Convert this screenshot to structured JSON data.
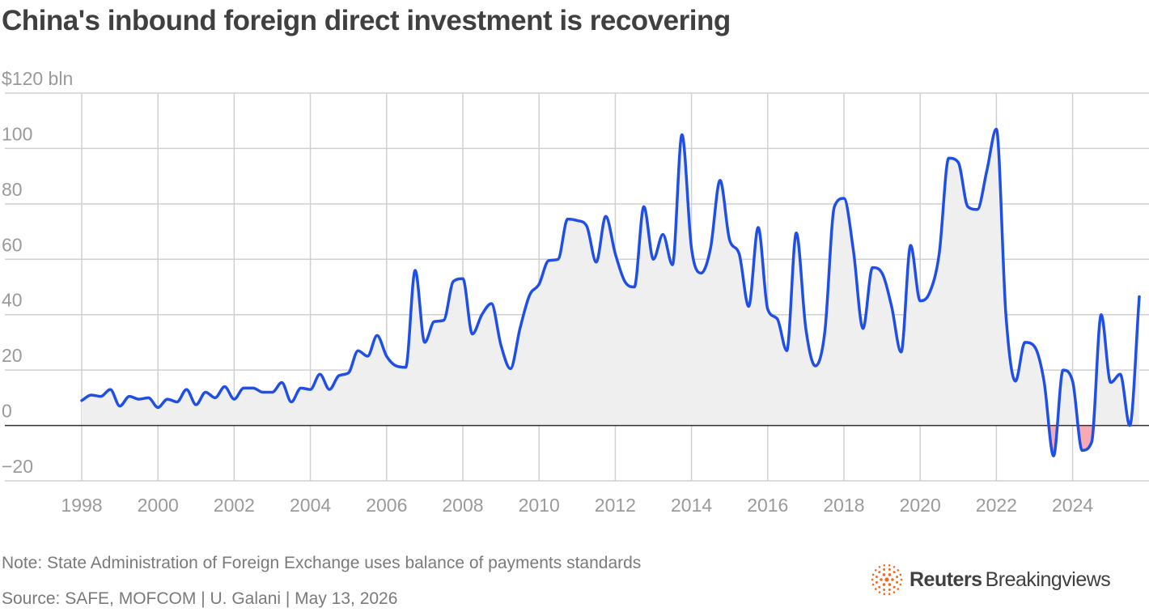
{
  "title": "China's inbound foreign direct investment is recovering",
  "note": "Note: State Administration of Foreign Exchange uses balance of payments standards",
  "source": "Source: SAFE, MOFCOM | U. Galani | May 13, 2026",
  "brand": {
    "name": "Reuters",
    "sub": "Breakingviews",
    "logo_icon": "reuters-dotted-sphere-icon"
  },
  "colors": {
    "line": "#1f4fe6",
    "area": "#efefef",
    "negative_area": "#f6aab3",
    "grid": "#d0d0d0",
    "zero_line": "#333333",
    "logo": "#f26a21"
  },
  "chart_data": {
    "type": "area",
    "title": "China's inbound foreign direct investment is recovering",
    "ylabel": "$120 bln",
    "ylim": [
      -20,
      120
    ],
    "yticks": [
      -20,
      0,
      20,
      40,
      60,
      80,
      100,
      120
    ],
    "ytick_labels": [
      "−20",
      "0",
      "20",
      "40",
      "60",
      "80",
      "100",
      "$120 bln"
    ],
    "xlim": [
      1998,
      2025.75
    ],
    "xticks": [
      1998,
      2000,
      2002,
      2004,
      2006,
      2008,
      2010,
      2012,
      2014,
      2016,
      2018,
      2020,
      2022,
      2024
    ],
    "grid": true,
    "series": [
      {
        "frequency": "quarterly",
        "start": "1998 Q1",
        "values": [
          9,
          11,
          10.5,
          13,
          7,
          10.5,
          9.5,
          10,
          6.5,
          9.5,
          8.5,
          13,
          7.5,
          12,
          10,
          14,
          9.5,
          13.5,
          13.5,
          12,
          12,
          15.5,
          8.5,
          13.5,
          13,
          18.5,
          13,
          18,
          19,
          27,
          25,
          32.5,
          25,
          21.5,
          21,
          56,
          30,
          37.5,
          38,
          52,
          53,
          33,
          40,
          44,
          29,
          20.5,
          35,
          47,
          51,
          59.5,
          60,
          74.5,
          74,
          72,
          59,
          75.5,
          62,
          52,
          50,
          79,
          60,
          69,
          58,
          105,
          64,
          55,
          64,
          88.5,
          67,
          62,
          43,
          71.5,
          42,
          38.5,
          27,
          69.5,
          35,
          21.5,
          34,
          79,
          82,
          63,
          35,
          57,
          55,
          43,
          26.5,
          65,
          45,
          48,
          62,
          96.5,
          95,
          79,
          78,
          92,
          107,
          40,
          16,
          30,
          28.5,
          16,
          -11,
          20,
          16,
          -9,
          -6,
          40,
          15.5,
          18.5,
          0,
          46.5
        ]
      }
    ]
  }
}
